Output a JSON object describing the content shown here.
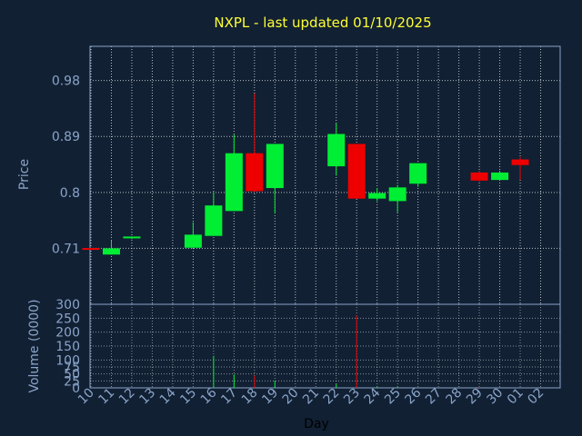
{
  "title": "NXPL - last updated 01/10/2025",
  "colors": {
    "background": "#112033",
    "axis_text": "#8aa4c8",
    "title": "#ffff33",
    "grid": "#ffffff",
    "up": "#00ee33",
    "down": "#ee0000",
    "frame": "#8aa4c8"
  },
  "chart_data": [
    {
      "type": "candlestick",
      "ylabel": "Price",
      "ylim": [
        0.62,
        1.035
      ],
      "yticks": [
        "0.71",
        "0.8",
        "0.89",
        "0.98"
      ],
      "ytick_values": [
        0.71,
        0.8,
        0.89,
        0.98
      ],
      "grid": true,
      "x": [
        "10",
        "11",
        "12",
        "13",
        "14",
        "15",
        "16",
        "17",
        "18",
        "19",
        "20",
        "21",
        "22",
        "23",
        "24",
        "25",
        "26",
        "27",
        "28",
        "29",
        "30",
        "01",
        "02"
      ],
      "ohlc": [
        {
          "x": "10",
          "open": 0.7105,
          "high": 0.7105,
          "low": 0.7095,
          "close": 0.7095
        },
        {
          "x": "11",
          "open": 0.7,
          "high": 0.723,
          "low": 0.7,
          "close": 0.71
        },
        {
          "x": "12",
          "open": 0.727,
          "high": 0.729,
          "low": 0.725,
          "close": 0.729
        },
        {
          "x": "15",
          "open": 0.711,
          "high": 0.752,
          "low": 0.711,
          "close": 0.732
        },
        {
          "x": "16",
          "open": 0.73,
          "high": 0.8,
          "low": 0.73,
          "close": 0.779
        },
        {
          "x": "17",
          "open": 0.77,
          "high": 0.893,
          "low": 0.77,
          "close": 0.863
        },
        {
          "x": "18",
          "open": 0.863,
          "high": 0.959,
          "low": 0.801,
          "close": 0.802
        },
        {
          "x": "19",
          "open": 0.807,
          "high": 0.878,
          "low": 0.766,
          "close": 0.878
        },
        {
          "x": "22",
          "open": 0.842,
          "high": 0.911,
          "low": 0.827,
          "close": 0.894
        },
        {
          "x": "23",
          "open": 0.878,
          "high": 0.878,
          "low": 0.79,
          "close": 0.79
        },
        {
          "x": "24",
          "open": 0.79,
          "high": 0.807,
          "low": 0.786,
          "close": 0.799
        },
        {
          "x": "25",
          "open": 0.786,
          "high": 0.812,
          "low": 0.768,
          "close": 0.808
        },
        {
          "x": "26",
          "open": 0.814,
          "high": 0.847,
          "low": 0.809,
          "close": 0.847
        },
        {
          "x": "29",
          "open": 0.832,
          "high": 0.835,
          "low": 0.817,
          "close": 0.819
        },
        {
          "x": "30",
          "open": 0.82,
          "high": 0.835,
          "low": 0.82,
          "close": 0.832
        },
        {
          "x": "01",
          "open": 0.853,
          "high": 0.857,
          "low": 0.82,
          "close": 0.844
        }
      ]
    },
    {
      "type": "bar",
      "ylabel": "Volume (0000)",
      "xlabel": "Day",
      "ylim": [
        0,
        300
      ],
      "yticks": [
        "0",
        "25",
        "50",
        "75",
        "100",
        "150",
        "200",
        "250",
        "300"
      ],
      "ytick_values": [
        0,
        25,
        50,
        75,
        100,
        150,
        200,
        250,
        300
      ],
      "grid": true,
      "x": [
        "10",
        "11",
        "12",
        "13",
        "14",
        "15",
        "16",
        "17",
        "18",
        "19",
        "20",
        "21",
        "22",
        "23",
        "24",
        "25",
        "26",
        "27",
        "28",
        "29",
        "30",
        "01",
        "02"
      ],
      "volumes": [
        {
          "x": "16",
          "value": 115,
          "direction": "up"
        },
        {
          "x": "17",
          "value": 48,
          "direction": "up"
        },
        {
          "x": "18",
          "value": 44,
          "direction": "down"
        },
        {
          "x": "19",
          "value": 26,
          "direction": "up"
        },
        {
          "x": "22",
          "value": 14,
          "direction": "up"
        },
        {
          "x": "23",
          "value": 260,
          "direction": "down"
        },
        {
          "x": "24",
          "value": 4,
          "direction": "up"
        },
        {
          "x": "25",
          "value": 4,
          "direction": "up"
        },
        {
          "x": "29",
          "value": 4,
          "direction": "down"
        },
        {
          "x": "30",
          "value": 2,
          "direction": "up"
        }
      ]
    }
  ]
}
